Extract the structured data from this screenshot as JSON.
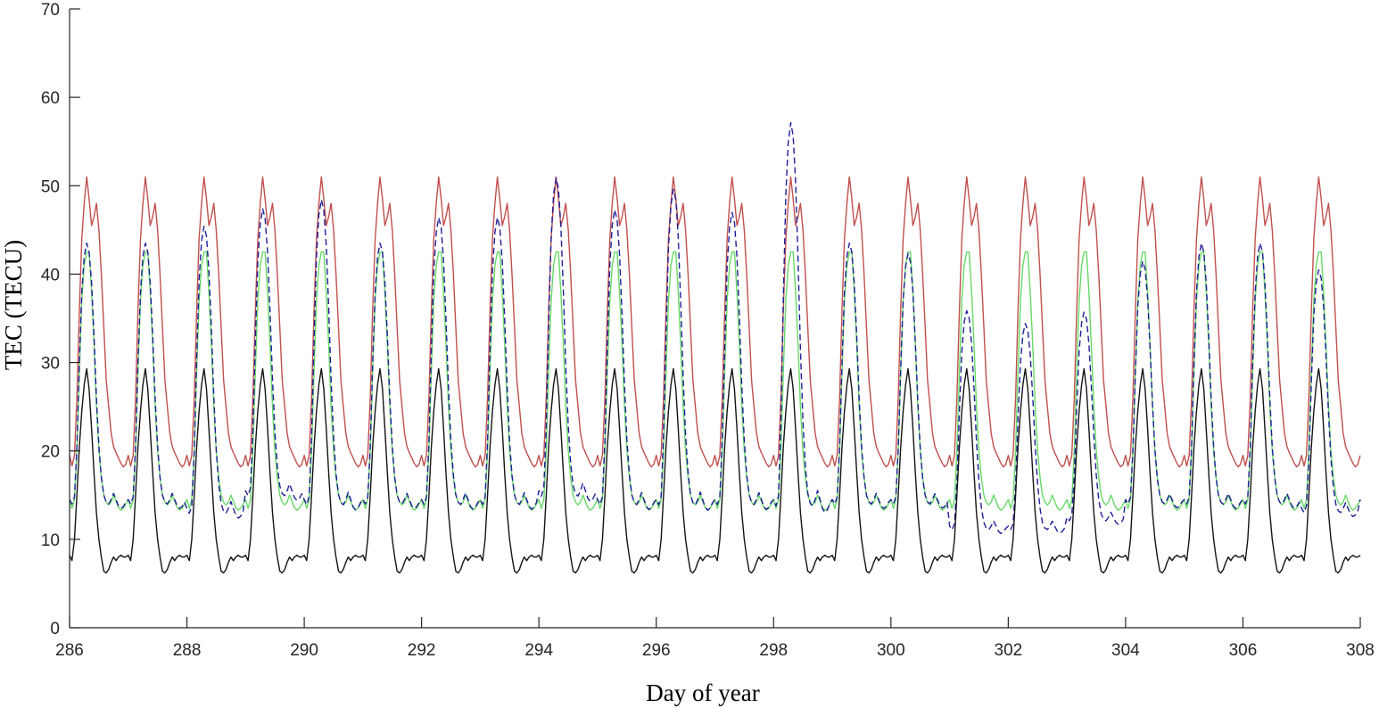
{
  "chart_data": {
    "type": "line",
    "title": "",
    "xlabel": "Day of year",
    "ylabel": "TEC (TECU)",
    "xlim": [
      286,
      308
    ],
    "ylim": [
      0,
      70
    ],
    "xticks": [
      286,
      288,
      290,
      292,
      294,
      296,
      298,
      300,
      302,
      304,
      306,
      308
    ],
    "yticks": [
      0,
      10,
      20,
      30,
      40,
      50,
      60,
      70
    ],
    "grid": false,
    "legend": "none",
    "sampling": "hourly",
    "series": [
      {
        "color": "#c0504d",
        "style": "solid",
        "daily_profile": [
          19.5,
          18.3,
          19.5,
          26,
          36,
          44,
          48,
          51,
          48.5,
          45.5,
          46.5,
          48,
          45,
          40,
          34,
          28,
          25,
          22,
          20.5,
          19.8,
          19.2,
          18.6,
          18.2,
          18.5
        ],
        "day_values": {}
      },
      {
        "color": "#66d966",
        "style": "solid",
        "daily_profile": [
          14.5,
          13.5,
          14.5,
          20,
          29,
          37,
          41,
          42.5,
          42.5,
          38,
          32,
          25,
          20,
          17,
          15,
          14.2,
          13.9,
          14.2,
          15,
          14.3,
          13.6,
          13.3,
          13.5,
          14
        ],
        "day_values": {}
      },
      {
        "color": "#1f1f9a",
        "style": "dashed",
        "daily_profile": [
          14.5,
          14,
          14.8,
          20.5,
          30,
          38,
          42,
          43.5,
          42.5,
          39,
          33,
          26,
          20.5,
          17,
          15,
          14.2,
          14,
          14.5,
          15.2,
          14.5,
          13.8,
          13.5,
          13.7,
          14.2
        ],
        "day_values": {
          "288": {
            "scale": 1.1,
            "offset": -1
          },
          "289": {
            "scale": 1.1,
            "offset": 1
          },
          "290": {
            "scale": 1.17
          },
          "292": {
            "scale": 1.1
          },
          "293": {
            "scale": 1.1
          },
          "294": {
            "scale": 1.22,
            "offset": 1
          },
          "295": {
            "scale": 1.13
          },
          "296": {
            "scale": 1.21
          },
          "297": {
            "scale": 1.12
          },
          "298": {
            "scale": 1.47
          },
          "300": {
            "scale": 0.96
          },
          "301": {
            "scale": 0.84,
            "offset": -3
          },
          "302": {
            "scale": 0.79,
            "offset": -3
          },
          "303": {
            "scale": 0.8,
            "offset": -2
          },
          "304": {
            "scale": 0.93
          },
          "307": {
            "scale": 0.93,
            "offset": -1
          }
        }
      },
      {
        "color": "#141414",
        "style": "solid",
        "daily_profile": [
          8.2,
          7.6,
          10,
          15,
          20.5,
          24.5,
          27.5,
          29.3,
          27,
          22.5,
          17.5,
          13,
          10,
          8,
          6.4,
          6.2,
          6.6,
          7.4,
          8,
          7.6,
          8,
          8.2,
          8,
          8
        ],
        "day_values": {}
      }
    ]
  }
}
